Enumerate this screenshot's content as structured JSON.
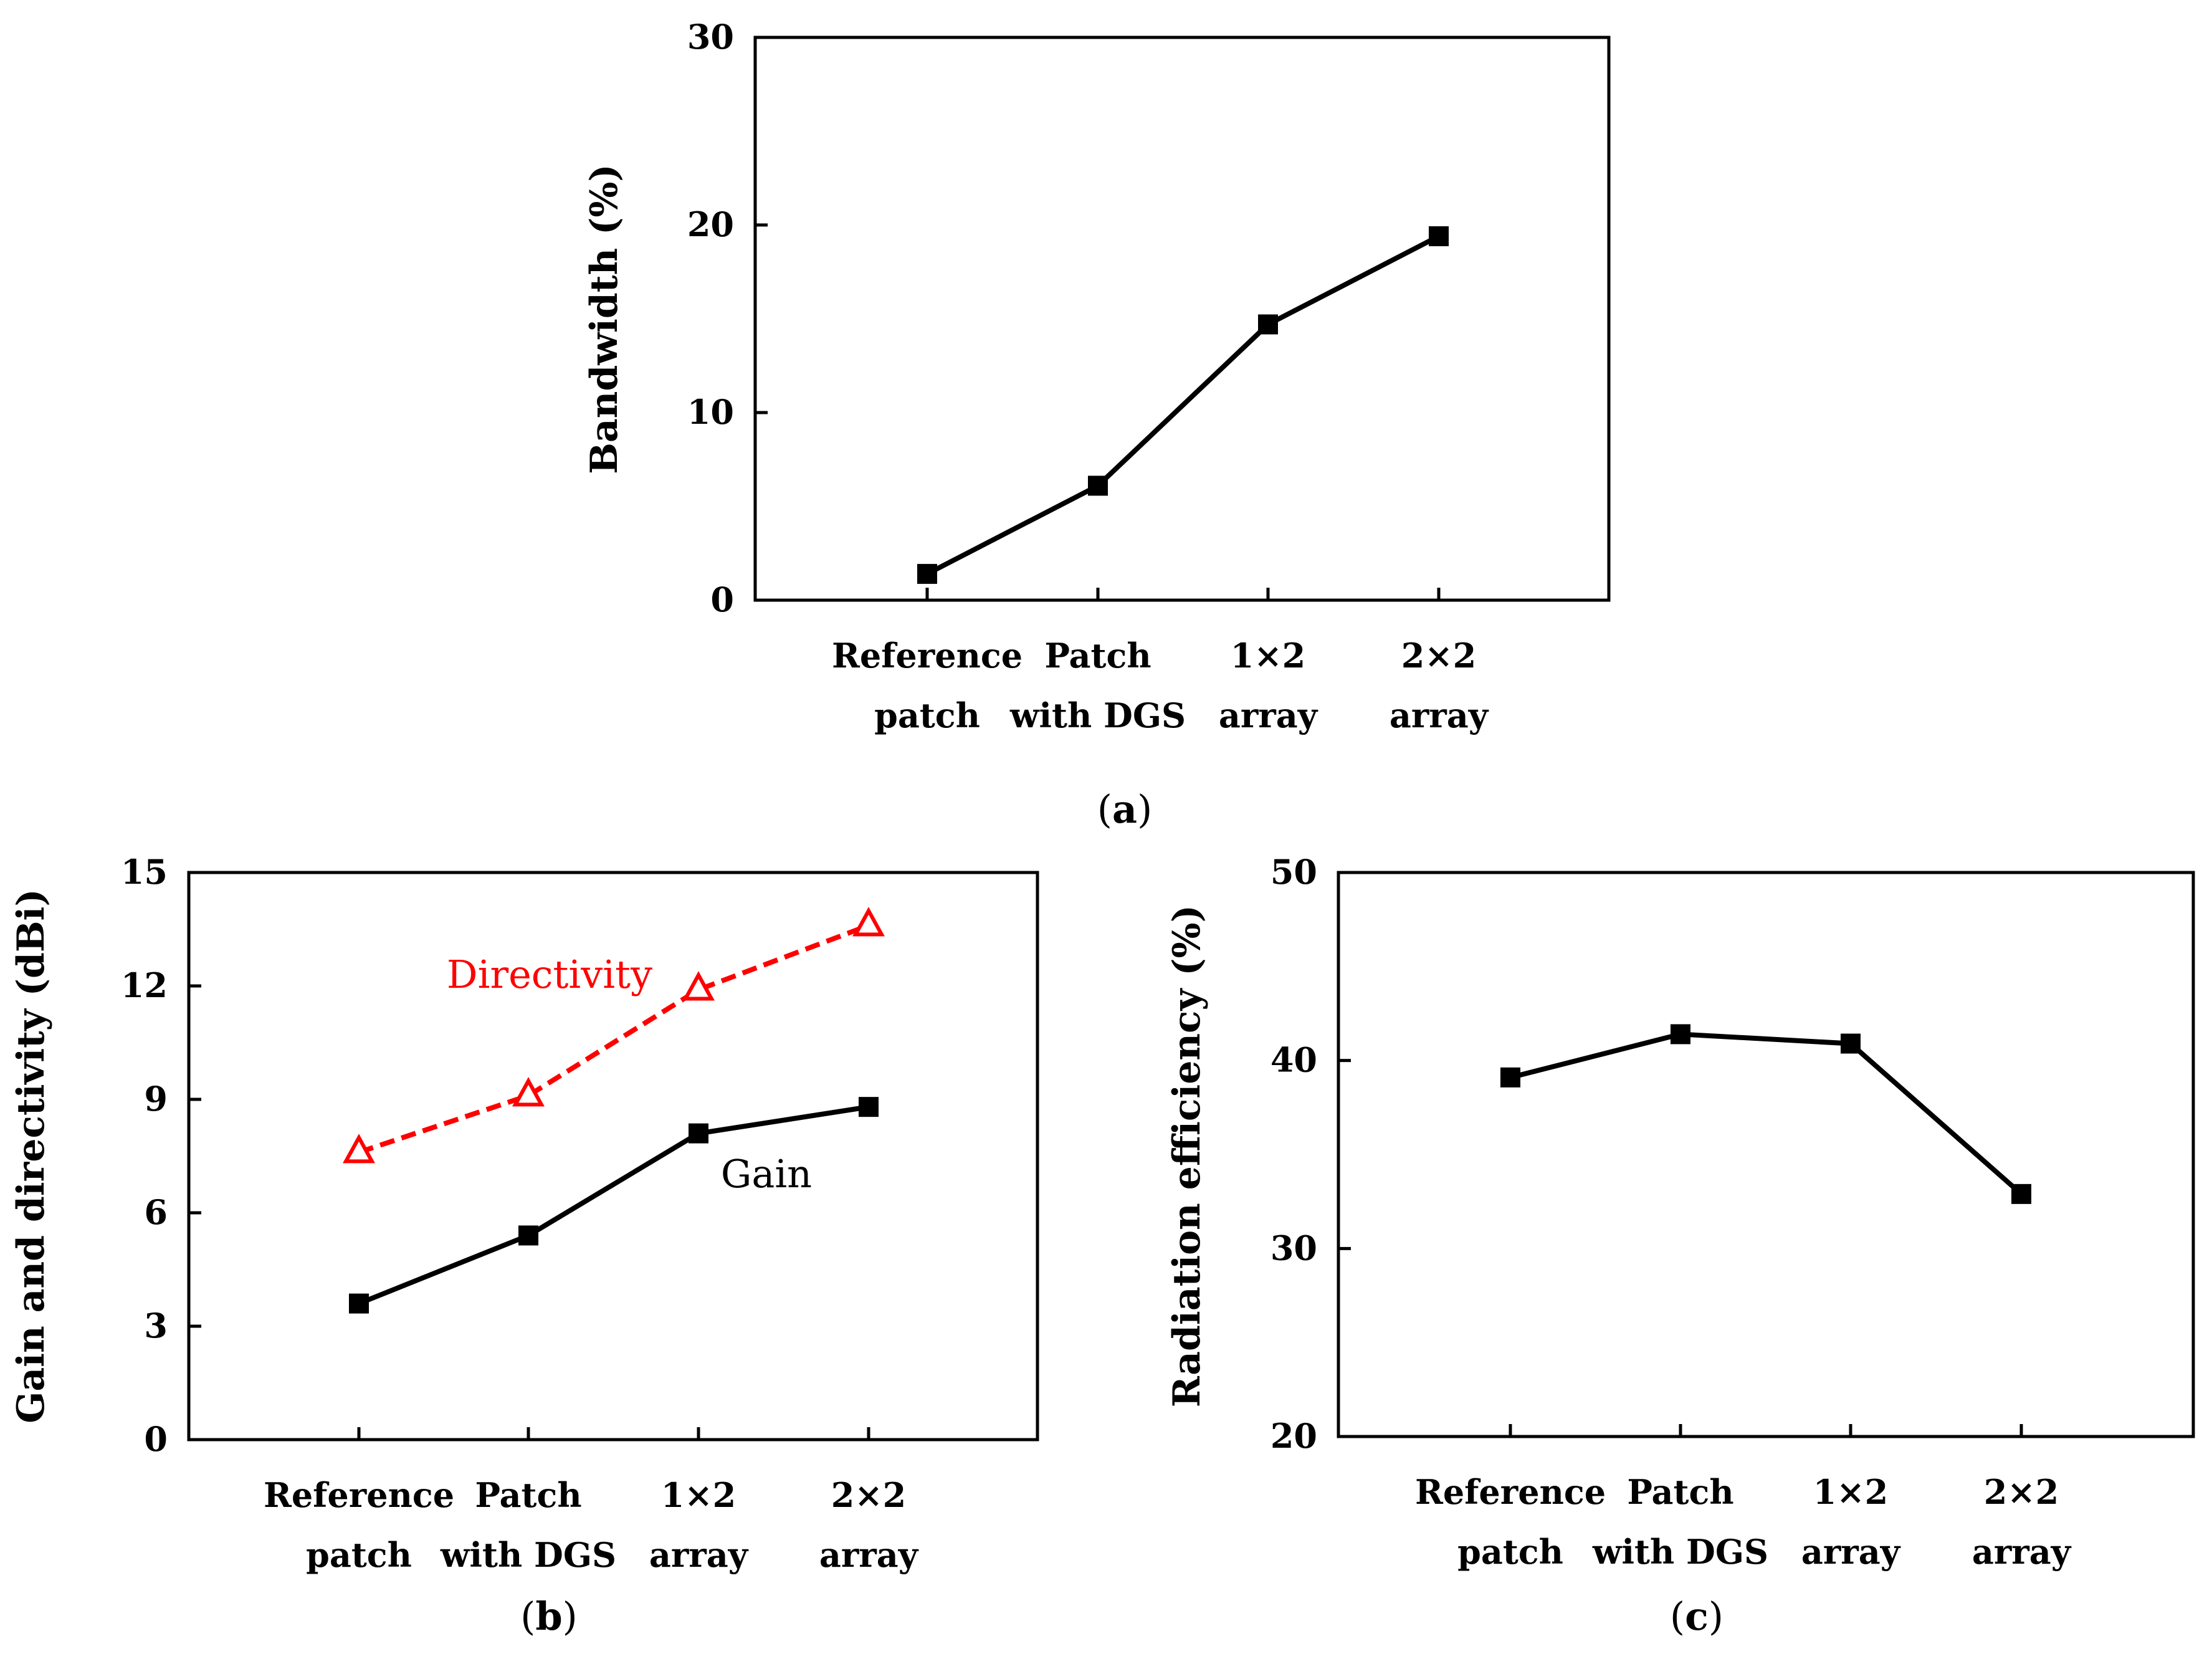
{
  "chart_data": [
    {
      "id": "a",
      "type": "line",
      "caption_letter": "a",
      "ylabel": "Bandwidth (%)",
      "xlabel": "",
      "ylim": [
        0,
        30
      ],
      "yticks": [
        "0",
        "10",
        "20",
        "30"
      ],
      "categories": [
        [
          "Reference",
          "patch"
        ],
        [
          "Patch",
          "with DGS"
        ],
        [
          "1×2",
          "array"
        ],
        [
          "2×2",
          "array"
        ]
      ],
      "series": [
        {
          "name": "Bandwidth",
          "values": [
            1.4,
            6.1,
            14.7,
            19.4
          ],
          "color": "#000000",
          "marker": "square",
          "dash": false
        }
      ],
      "annotations": []
    },
    {
      "id": "b",
      "type": "line",
      "caption_letter": "b",
      "ylabel": "Gain and directivity (dBi)",
      "xlabel": "",
      "ylim": [
        0,
        15
      ],
      "yticks": [
        "0",
        "3",
        "6",
        "9",
        "12",
        "15"
      ],
      "categories": [
        [
          "Reference",
          "patch"
        ],
        [
          "Patch",
          "with DGS"
        ],
        [
          "1×2",
          "array"
        ],
        [
          "2×2",
          "array"
        ]
      ],
      "series": [
        {
          "name": "Directivity",
          "values": [
            7.6,
            9.1,
            11.9,
            13.6
          ],
          "color": "#ff0000",
          "marker": "triangle",
          "dash": true
        },
        {
          "name": "Gain",
          "values": [
            3.6,
            5.4,
            8.1,
            8.8
          ],
          "color": "#000000",
          "marker": "square",
          "dash": false
        }
      ],
      "annotations": [
        {
          "text": "Directivity",
          "color": "#ff0000",
          "near_series": "Directivity"
        },
        {
          "text": "Gain",
          "color": "#000000",
          "near_series": "Gain"
        }
      ]
    },
    {
      "id": "c",
      "type": "line",
      "caption_letter": "c",
      "ylabel": "Radiation efficiency (%)",
      "xlabel": "",
      "ylim": [
        20,
        50
      ],
      "yticks": [
        "20",
        "30",
        "40",
        "50"
      ],
      "categories": [
        [
          "Reference",
          "patch"
        ],
        [
          "Patch",
          "with DGS"
        ],
        [
          "1×2",
          "array"
        ],
        [
          "2×2",
          "array"
        ]
      ],
      "series": [
        {
          "name": "Radiation efficiency",
          "values": [
            39.1,
            41.4,
            40.9,
            32.9
          ],
          "color": "#000000",
          "marker": "square",
          "dash": false
        }
      ],
      "annotations": []
    }
  ]
}
